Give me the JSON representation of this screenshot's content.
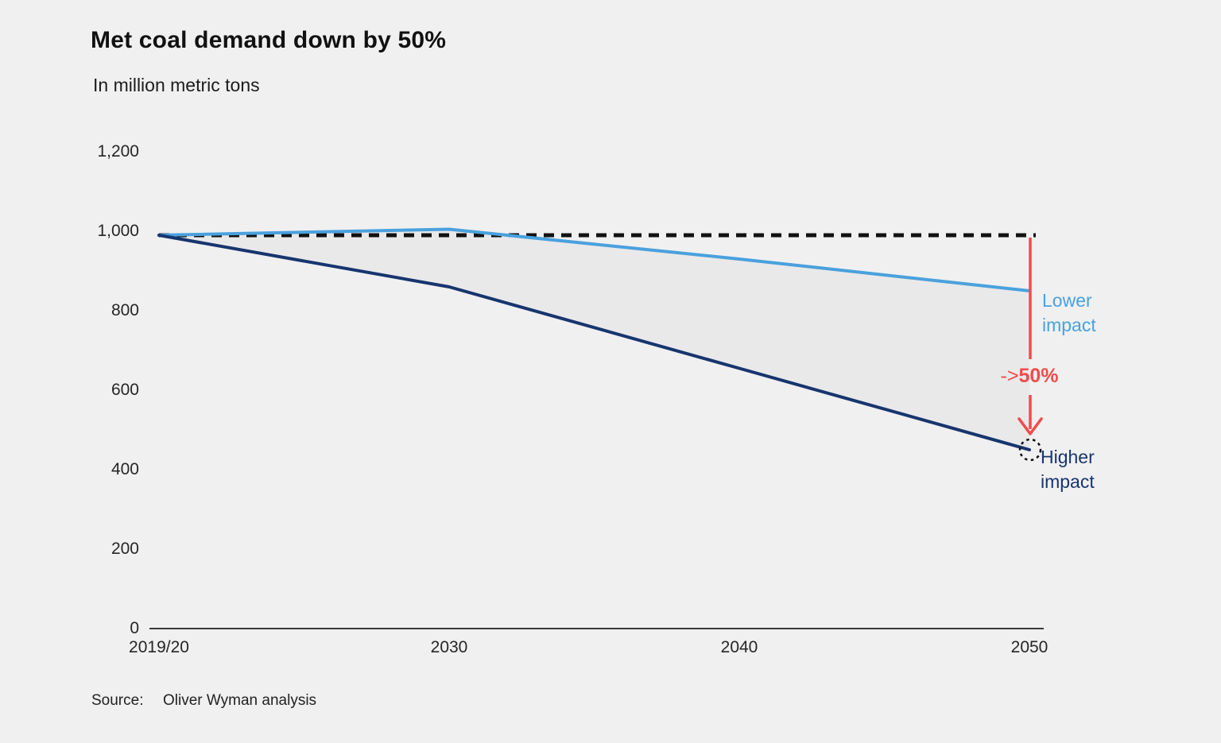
{
  "chart_data": {
    "type": "line",
    "title": "Met coal demand down by 50%",
    "subtitle": "In million metric tons",
    "categories": [
      "2019/20",
      "2030",
      "2040",
      "2050"
    ],
    "series": [
      {
        "name": "Lower impact",
        "values": [
          990,
          1005,
          930,
          850
        ],
        "color": "#4aa1dc"
      },
      {
        "name": "Higher impact",
        "values": [
          990,
          860,
          655,
          450
        ],
        "color": "#17356e"
      }
    ],
    "baseline": {
      "value": 990,
      "style": "dashed",
      "color": "#111111"
    },
    "band_fill": "#e9e9ea",
    "ylim": [
      0,
      1200
    ],
    "yticks": [
      0,
      200,
      400,
      600,
      800,
      1000,
      1200
    ],
    "ytick_labels": [
      "0",
      "200",
      "400",
      "600",
      "800",
      "1,000",
      "1,200"
    ],
    "grid": false,
    "legend_position": "right-of-line-ends",
    "axis_color": "#3a3a3a",
    "annotation": {
      "reduction_prefix": "->",
      "reduction_value": "50%",
      "color": "#f24b4b"
    }
  },
  "source": {
    "label": "Source:",
    "text": "Oliver Wyman analysis"
  }
}
